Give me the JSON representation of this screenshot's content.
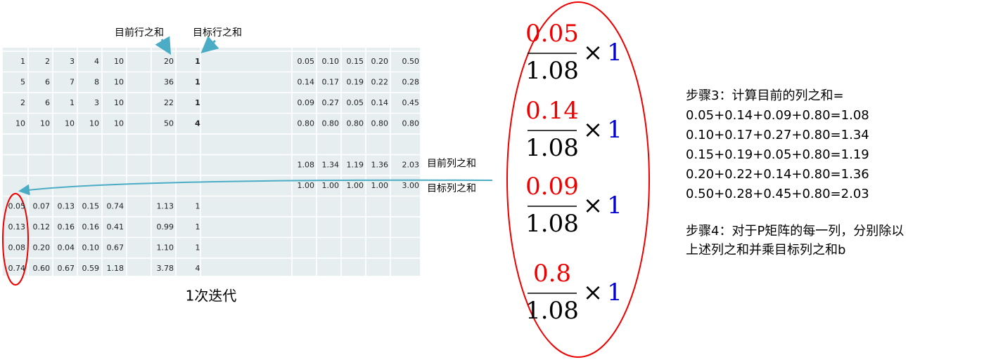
{
  "header": {
    "current_row_sum": "目前行之和",
    "target_row_sum": "目标行之和"
  },
  "matrix": [
    [
      "1",
      "2",
      "3",
      "4",
      "10",
      "20",
      "1"
    ],
    [
      "5",
      "6",
      "7",
      "8",
      "10",
      "36",
      "1"
    ],
    [
      "2",
      "6",
      "1",
      "3",
      "10",
      "22",
      "1"
    ],
    [
      "10",
      "10",
      "10",
      "10",
      "10",
      "50",
      "4"
    ]
  ],
  "scaled": [
    [
      "0.05",
      "0.10",
      "0.15",
      "0.20",
      "0.50"
    ],
    [
      "0.14",
      "0.17",
      "0.19",
      "0.22",
      "0.28"
    ],
    [
      "0.09",
      "0.27",
      "0.05",
      "0.14",
      "0.45"
    ],
    [
      "0.80",
      "0.80",
      "0.80",
      "0.80",
      "0.80"
    ]
  ],
  "col_sums": {
    "label": "目前列之和",
    "values": [
      "1.08",
      "1.34",
      "1.19",
      "1.36",
      "2.03"
    ]
  },
  "target_cols": {
    "label": "目标列之和",
    "values": [
      "1.00",
      "1.00",
      "1.00",
      "1.00",
      "3.00"
    ]
  },
  "result": [
    [
      "0.05",
      "0.07",
      "0.13",
      "0.15",
      "0.74",
      "1.13",
      "1"
    ],
    [
      "0.13",
      "0.12",
      "0.16",
      "0.16",
      "0.41",
      "0.99",
      "1"
    ],
    [
      "0.08",
      "0.20",
      "0.04",
      "0.10",
      "0.67",
      "1.10",
      "1"
    ],
    [
      "0.74",
      "0.60",
      "0.67",
      "0.59",
      "1.18",
      "3.78",
      "4"
    ]
  ],
  "caption": "1次迭代",
  "fractions": [
    {
      "num": "0.05",
      "den": "1.08",
      "times": "×",
      "mult": "1"
    },
    {
      "num": "0.14",
      "den": "1.08",
      "times": "×",
      "mult": "1"
    },
    {
      "num": "0.09",
      "den": "1.08",
      "times": "×",
      "mult": "1"
    },
    {
      "num": "0.8",
      "den": "1.08",
      "times": "×",
      "mult": "1"
    }
  ],
  "step3": {
    "title": "步骤3：计算目前的列之和=",
    "lines": [
      "0.05+0.14+0.09+0.80=1.08",
      "0.10+0.17+0.27+0.80=1.34",
      "0.15+0.19+0.05+0.80=1.19",
      "0.20+0.22+0.14+0.80=1.36",
      "0.50+0.28+0.45+0.80=2.03"
    ]
  },
  "step4": {
    "lines": [
      "步骤4：对于P矩阵的每一列，分别除以",
      "上述列之和并乘目标列之和b"
    ]
  }
}
